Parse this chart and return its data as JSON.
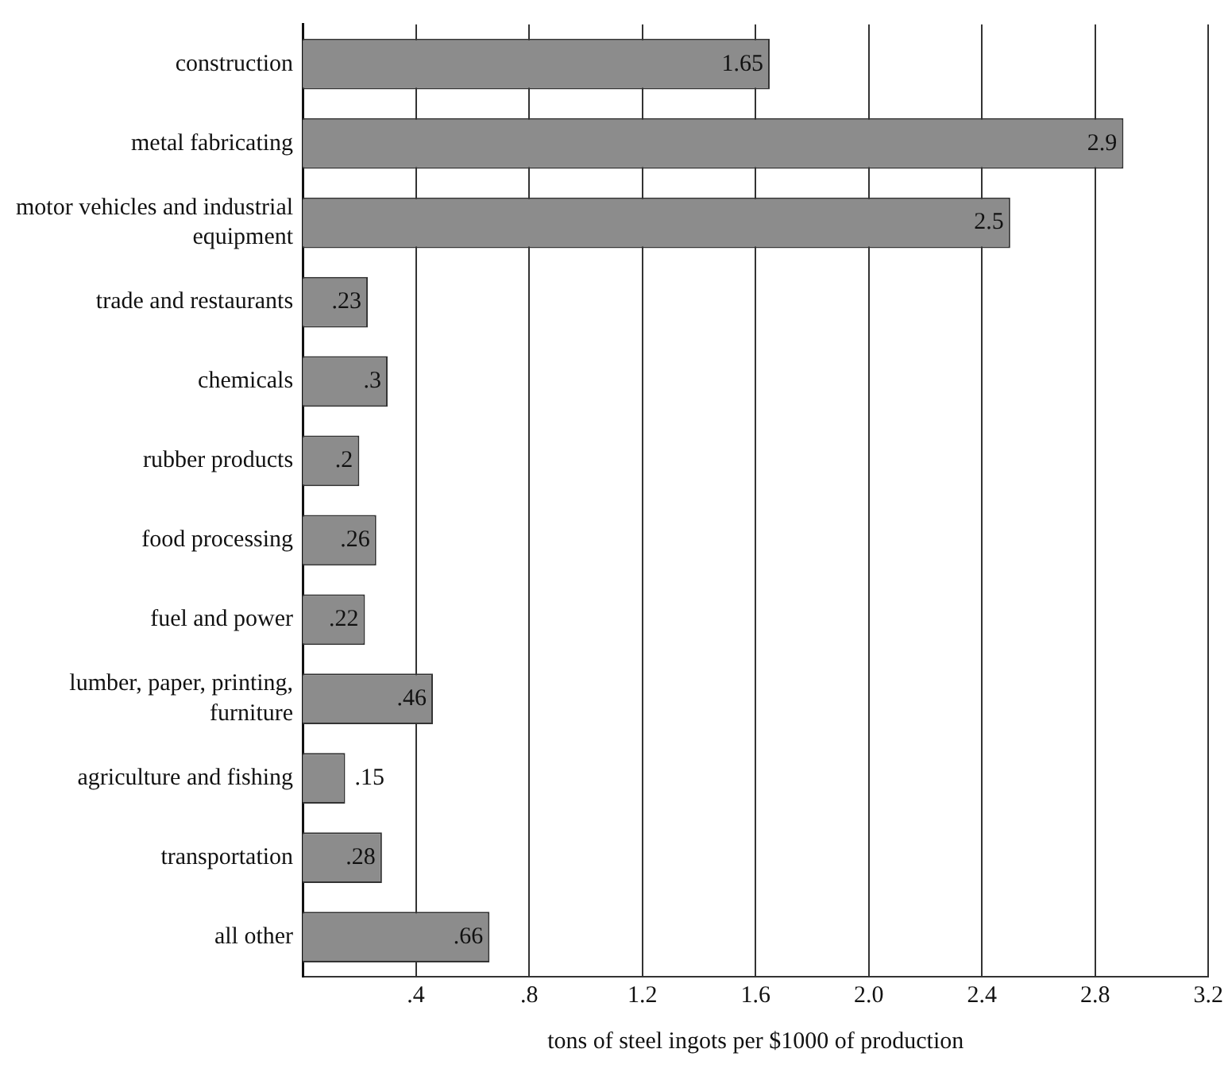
{
  "chart_data": {
    "type": "bar",
    "orientation": "horizontal",
    "xlabel": "tons of steel ingots per $1000 of production",
    "categories": [
      "construction",
      "metal fabricating",
      "motor vehicles and industrial equipment",
      "trade and restaurants",
      "chemicals",
      "rubber products",
      "food processing",
      "fuel and power",
      "lumber, paper, printing, furniture",
      "agriculture and fishing",
      "transportation",
      "all other"
    ],
    "values": [
      1.65,
      2.9,
      2.5,
      0.23,
      0.3,
      0.2,
      0.26,
      0.22,
      0.46,
      0.15,
      0.28,
      0.66
    ],
    "value_labels": [
      "1.65",
      "2.9",
      "2.5",
      ".23",
      ".3",
      ".2",
      ".26",
      ".22",
      ".46",
      ".15",
      ".28",
      ".66"
    ],
    "color": "#8c8c8c",
    "xlim": [
      0,
      3.2
    ],
    "xticks": [
      {
        "value": 0.4,
        "label": ".4"
      },
      {
        "value": 0.8,
        "label": ".8"
      },
      {
        "value": 1.2,
        "label": "1.2"
      },
      {
        "value": 1.6,
        "label": "1.6"
      },
      {
        "value": 2,
        "label": "2.0"
      },
      {
        "value": 2.4,
        "label": "2.4"
      },
      {
        "value": 2.8,
        "label": "2.8"
      },
      {
        "value": 3.2,
        "label": "3.2"
      }
    ],
    "grid": "x",
    "legend": false
  }
}
